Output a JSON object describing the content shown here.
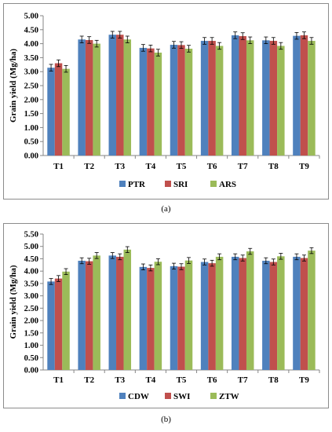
{
  "chart_data": [
    {
      "type": "bar",
      "panel_label": "(a)",
      "title": "",
      "xlabel": "",
      "ylabel": "Grain yield (Mg/ha)",
      "ylim": [
        0,
        5
      ],
      "ytick_step": 0.5,
      "ytick_labels": [
        "0.00",
        "0.50",
        "1.00",
        "1.50",
        "2.00",
        "2.50",
        "3.00",
        "3.50",
        "4.00",
        "4.50",
        "5.00"
      ],
      "categories": [
        "T1",
        "T2",
        "T3",
        "T4",
        "T5",
        "T6",
        "T7",
        "T8",
        "T9"
      ],
      "series": [
        {
          "name": "PTR",
          "color": "#4f81bd",
          "values": [
            3.14,
            4.15,
            4.32,
            3.85,
            3.96,
            4.1,
            4.3,
            4.12,
            4.28
          ],
          "errors": [
            0.12,
            0.12,
            0.12,
            0.12,
            0.12,
            0.12,
            0.12,
            0.12,
            0.12
          ]
        },
        {
          "name": "SRI",
          "color": "#c0504d",
          "values": [
            3.3,
            4.13,
            4.32,
            3.83,
            3.95,
            4.1,
            4.27,
            4.1,
            4.3
          ],
          "errors": [
            0.12,
            0.12,
            0.12,
            0.12,
            0.12,
            0.12,
            0.12,
            0.12,
            0.12
          ]
        },
        {
          "name": "ARS",
          "color": "#9bbb59",
          "values": [
            3.1,
            4.0,
            4.15,
            3.68,
            3.82,
            3.92,
            4.12,
            3.92,
            4.1
          ],
          "errors": [
            0.12,
            0.12,
            0.12,
            0.12,
            0.12,
            0.12,
            0.12,
            0.12,
            0.12
          ]
        }
      ],
      "grid": false,
      "legend": "bottom"
    },
    {
      "type": "bar",
      "panel_label": "(b)",
      "title": "",
      "xlabel": "",
      "ylabel": "Grain yield (Mg/ha)",
      "ylim": [
        0,
        5.5
      ],
      "ytick_step": 0.5,
      "ytick_labels": [
        "0.00",
        "0.50",
        "1.00",
        "1.50",
        "2.00",
        "2.50",
        "3.00",
        "3.50",
        "4.00",
        "4.50",
        "5.00",
        "5.50"
      ],
      "categories": [
        "T1",
        "T2",
        "T3",
        "T4",
        "T5",
        "T6",
        "T7",
        "T8",
        "T9"
      ],
      "series": [
        {
          "name": "CDW",
          "color": "#4f81bd",
          "values": [
            3.58,
            4.42,
            4.63,
            4.17,
            4.2,
            4.37,
            4.58,
            4.42,
            4.58
          ],
          "errors": [
            0.12,
            0.12,
            0.12,
            0.12,
            0.12,
            0.12,
            0.12,
            0.12,
            0.12
          ]
        },
        {
          "name": "SWI",
          "color": "#c0504d",
          "values": [
            3.7,
            4.4,
            4.58,
            4.13,
            4.18,
            4.32,
            4.53,
            4.37,
            4.53
          ],
          "errors": [
            0.12,
            0.12,
            0.12,
            0.12,
            0.12,
            0.12,
            0.12,
            0.12,
            0.12
          ]
        },
        {
          "name": "ZTW",
          "color": "#9bbb59",
          "values": [
            3.98,
            4.63,
            4.87,
            4.38,
            4.43,
            4.58,
            4.8,
            4.6,
            4.83
          ],
          "errors": [
            0.12,
            0.12,
            0.12,
            0.12,
            0.12,
            0.12,
            0.12,
            0.12,
            0.12
          ]
        }
      ],
      "grid": false,
      "legend": "bottom"
    }
  ]
}
